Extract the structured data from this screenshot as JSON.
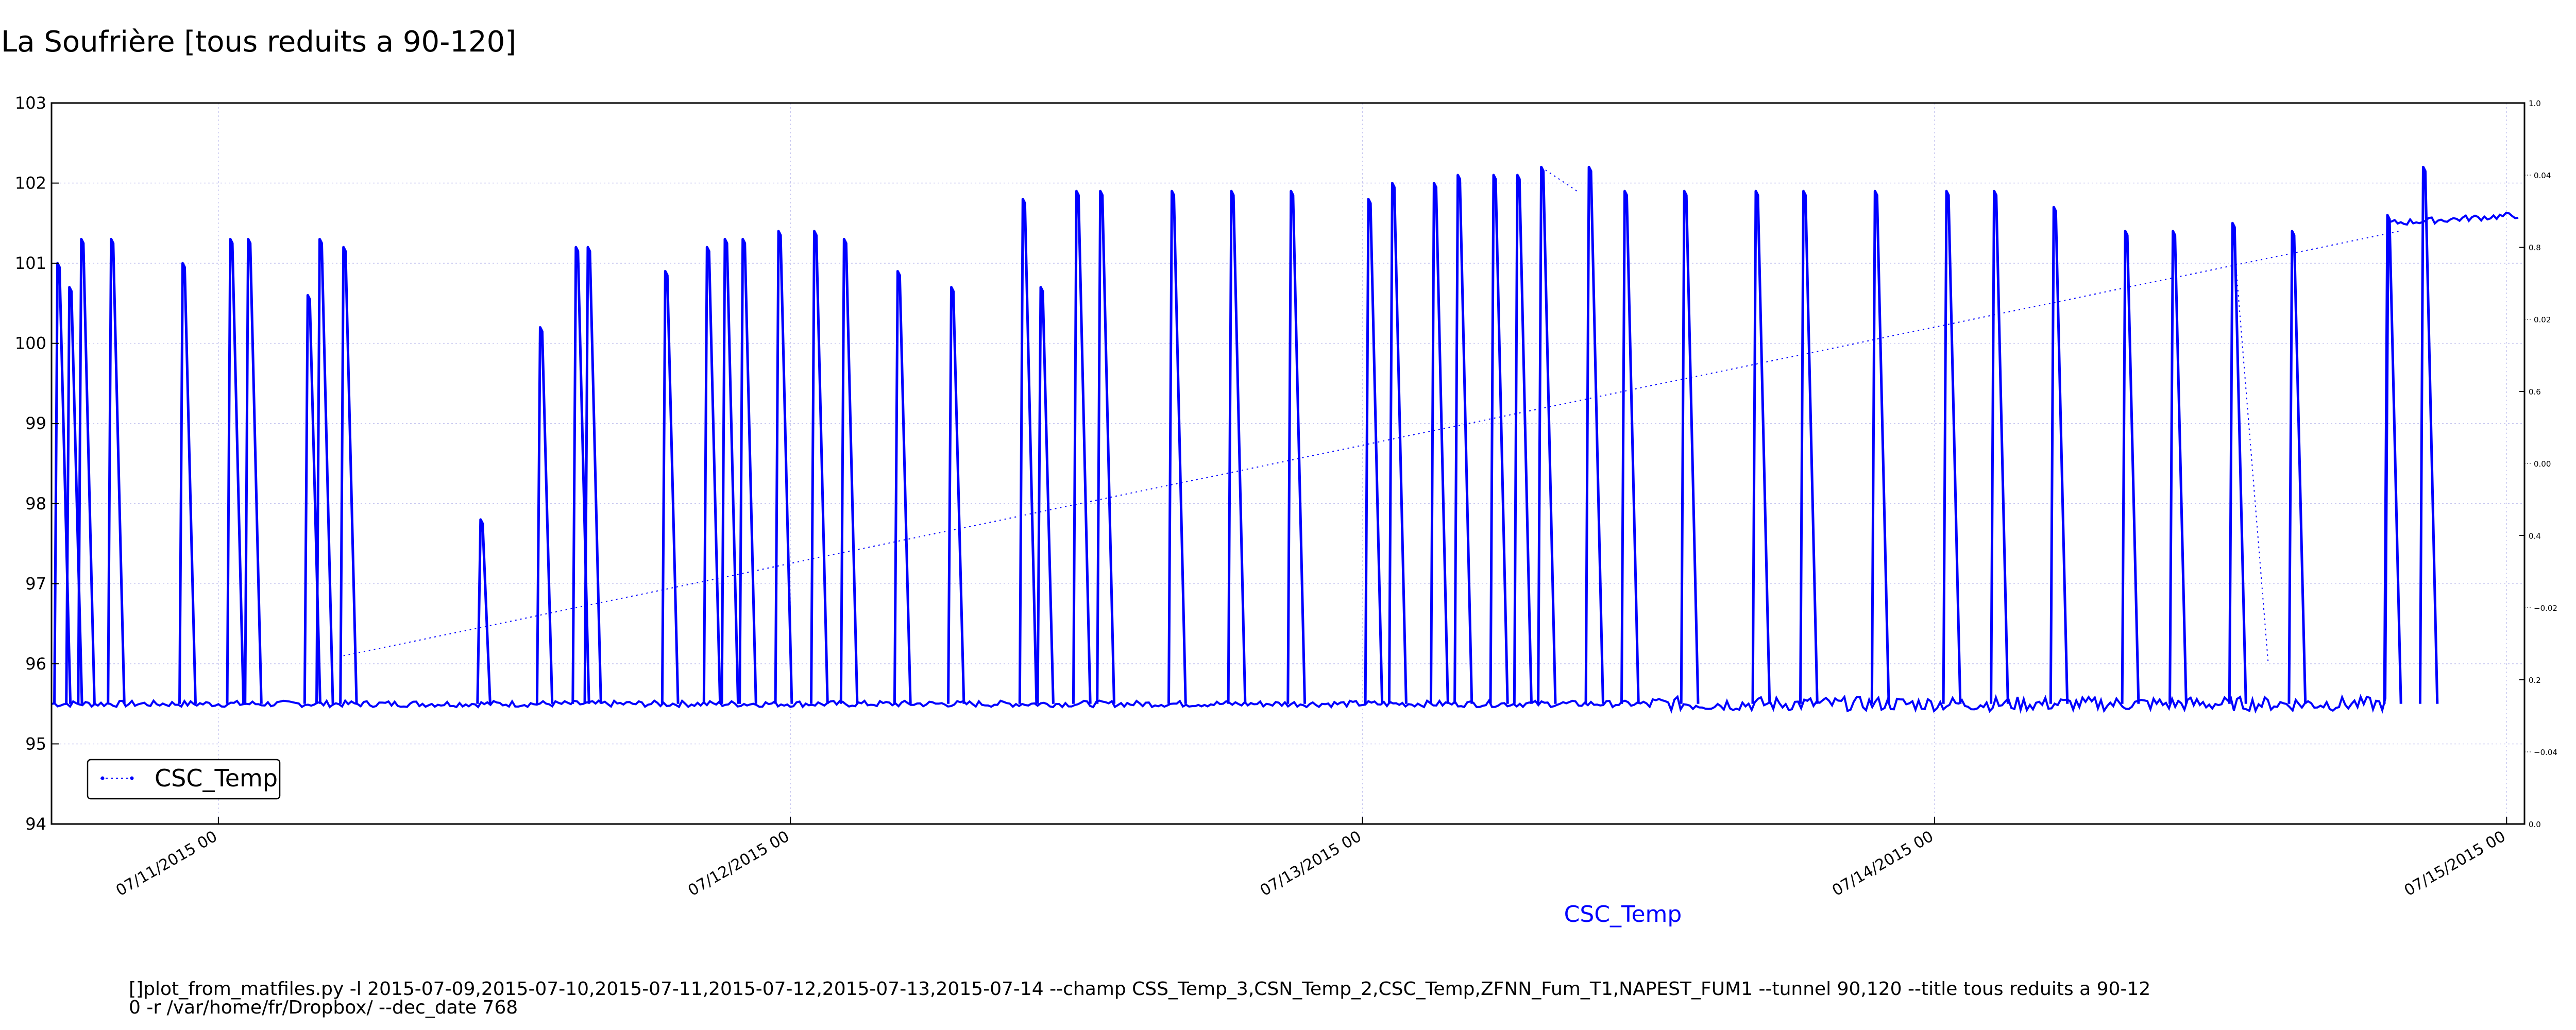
{
  "chart_data": {
    "type": "line",
    "title": "La Soufrière [tous reduits a 90-120]",
    "xlabel": "CSC_Temp",
    "ylabel": "",
    "ylim": [
      94,
      103
    ],
    "y_ticks": [
      "94",
      "95",
      "96",
      "97",
      "98",
      "99",
      "100",
      "101",
      "102",
      "103"
    ],
    "x_ticks": [
      {
        "label": "07/11/2015 00",
        "value": "2015-07-11 00:00"
      },
      {
        "label": "07/12/2015 00",
        "value": "2015-07-12 00:00"
      },
      {
        "label": "07/13/2015 00",
        "value": "2015-07-13 00:00"
      },
      {
        "label": "07/14/2015 00",
        "value": "2015-07-14 00:00"
      },
      {
        "label": "07/15/2015 00",
        "value": "2015-07-15 00:00"
      }
    ],
    "xlim": [
      "2015-07-10 17:00",
      "2015-07-15 00:45"
    ],
    "right_axis_ticks": [
      "0.0",
      "0.2",
      "0.4",
      "0.6",
      "0.8",
      "1.0"
    ],
    "right_axis_minor_ticks": [
      "−0.04",
      "−0.02",
      "0.00",
      "0.02",
      "0.04"
    ],
    "grid": true,
    "legend_position": "lower-left",
    "series": [
      {
        "name": "CSC_Temp",
        "color": "#0000ff",
        "baseline": 95.5,
        "x": [
          "2015-07-10 17:00",
          "2015-07-11 06:00",
          "2015-07-11 12:00",
          "2015-07-11 18:00",
          "2015-07-12 00:00",
          "2015-07-12 06:00",
          "2015-07-12 12:00",
          "2015-07-12 18:00",
          "2015-07-13 00:00",
          "2015-07-13 06:00",
          "2015-07-13 12:00",
          "2015-07-13 18:00",
          "2015-07-14 00:00",
          "2015-07-14 06:00",
          "2015-07-14 12:00",
          "2015-07-14 18:00",
          "2015-07-15 00:30"
        ],
        "y": [
          95.5,
          95.5,
          95.5,
          95.5,
          95.5,
          95.5,
          95.5,
          95.5,
          95.5,
          95.5,
          95.5,
          95.5,
          95.5,
          95.5,
          95.5,
          101.4,
          101.6
        ],
        "spike_peaks": [
          {
            "x": "2015-07-10 17:15",
            "y": 101.0
          },
          {
            "x": "2015-07-10 17:45",
            "y": 100.7
          },
          {
            "x": "2015-07-10 18:15",
            "y": 101.3
          },
          {
            "x": "2015-07-10 19:30",
            "y": 101.3
          },
          {
            "x": "2015-07-10 22:30",
            "y": 101.0
          },
          {
            "x": "2015-07-11 00:30",
            "y": 101.3
          },
          {
            "x": "2015-07-11 01:15",
            "y": 101.3
          },
          {
            "x": "2015-07-11 03:45",
            "y": 100.6
          },
          {
            "x": "2015-07-11 04:15",
            "y": 101.3
          },
          {
            "x": "2015-07-11 05:15",
            "y": 101.2
          },
          {
            "x": "2015-07-11 11:00",
            "y": 97.8
          },
          {
            "x": "2015-07-11 13:30",
            "y": 100.2
          },
          {
            "x": "2015-07-11 15:00",
            "y": 101.2
          },
          {
            "x": "2015-07-11 15:30",
            "y": 101.2
          },
          {
            "x": "2015-07-11 18:45",
            "y": 100.9
          },
          {
            "x": "2015-07-11 20:30",
            "y": 101.2
          },
          {
            "x": "2015-07-11 21:15",
            "y": 101.3
          },
          {
            "x": "2015-07-11 22:00",
            "y": 101.3
          },
          {
            "x": "2015-07-11 23:30",
            "y": 101.4
          },
          {
            "x": "2015-07-12 01:00",
            "y": 101.4
          },
          {
            "x": "2015-07-12 02:15",
            "y": 101.3
          },
          {
            "x": "2015-07-12 04:30",
            "y": 100.9
          },
          {
            "x": "2015-07-12 06:45",
            "y": 100.7
          },
          {
            "x": "2015-07-12 09:45",
            "y": 101.8
          },
          {
            "x": "2015-07-12 10:30",
            "y": 100.7
          },
          {
            "x": "2015-07-12 12:00",
            "y": 101.9
          },
          {
            "x": "2015-07-12 13:00",
            "y": 101.9
          },
          {
            "x": "2015-07-12 16:00",
            "y": 101.9
          },
          {
            "x": "2015-07-12 18:30",
            "y": 101.9
          },
          {
            "x": "2015-07-12 21:00",
            "y": 101.9
          },
          {
            "x": "2015-07-13 00:15",
            "y": 101.8
          },
          {
            "x": "2015-07-13 01:15",
            "y": 102.0
          },
          {
            "x": "2015-07-13 03:00",
            "y": 102.0
          },
          {
            "x": "2015-07-13 04:00",
            "y": 102.1
          },
          {
            "x": "2015-07-13 05:30",
            "y": 102.1
          },
          {
            "x": "2015-07-13 06:30",
            "y": 102.1
          },
          {
            "x": "2015-07-13 07:30",
            "y": 102.2
          },
          {
            "x": "2015-07-13 09:30",
            "y": 102.2
          },
          {
            "x": "2015-07-13 11:00",
            "y": 101.9
          },
          {
            "x": "2015-07-13 13:30",
            "y": 101.9
          },
          {
            "x": "2015-07-13 16:30",
            "y": 101.9
          },
          {
            "x": "2015-07-13 18:30",
            "y": 101.9
          },
          {
            "x": "2015-07-13 21:30",
            "y": 101.9
          },
          {
            "x": "2015-07-14 00:30",
            "y": 101.9
          },
          {
            "x": "2015-07-14 02:30",
            "y": 101.9
          },
          {
            "x": "2015-07-14 05:00",
            "y": 101.7
          },
          {
            "x": "2015-07-14 08:00",
            "y": 101.4
          },
          {
            "x": "2015-07-14 10:00",
            "y": 101.4
          },
          {
            "x": "2015-07-14 12:30",
            "y": 101.5
          },
          {
            "x": "2015-07-14 15:00",
            "y": 101.4
          },
          {
            "x": "2015-07-14 19:00",
            "y": 101.6
          },
          {
            "x": "2015-07-14 20:30",
            "y": 102.2
          }
        ]
      }
    ]
  },
  "footer": {
    "line1": "[]plot_from_matfiles.py -l 2015-07-09,2015-07-10,2015-07-11,2015-07-12,2015-07-13,2015-07-14 --champ CSS_Temp_3,CSN_Temp_2,CSC_Temp,ZFNN_Fum_T1,NAPEST_FUM1 --tunnel 90,120 --title tous reduits a 90-12",
    "line2": "0 -r /var/home/fr/Dropbox/ --dec_date 768"
  }
}
